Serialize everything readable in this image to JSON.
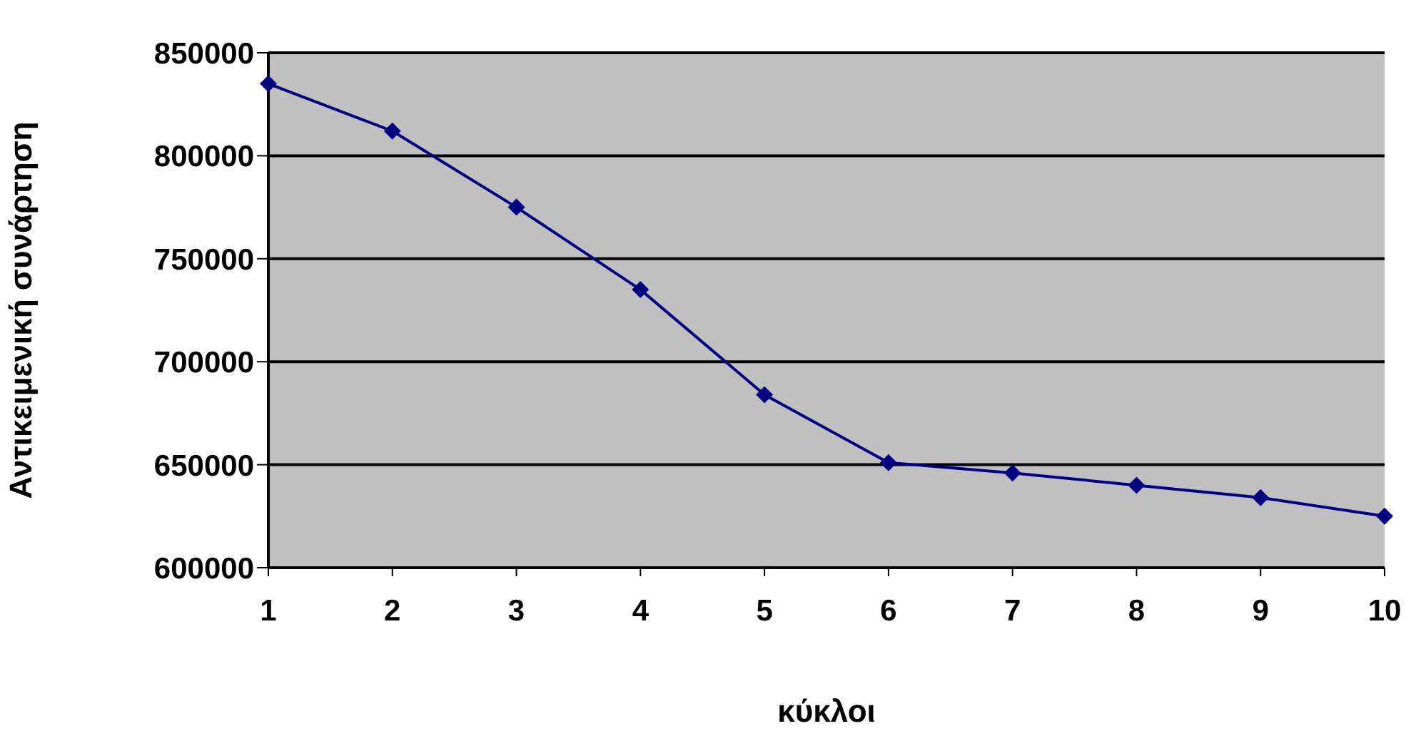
{
  "chart_data": {
    "type": "line",
    "xlabel": "κύκλοι",
    "ylabel": "Αντικειμενική συνάρτηση",
    "categories": [
      "1",
      "2",
      "3",
      "4",
      "5",
      "6",
      "7",
      "8",
      "9",
      "10"
    ],
    "series": [
      {
        "color": "#000080",
        "values": [
          835000,
          812000,
          775000,
          735000,
          684000,
          651000,
          646000,
          640000,
          634000,
          625000
        ]
      }
    ],
    "ylim": [
      600000,
      850000
    ],
    "yticks": [
      600000,
      650000,
      700000,
      750000,
      800000,
      850000
    ],
    "grid": "y",
    "legend": false,
    "marker": "diamond",
    "line_style": "solid"
  }
}
